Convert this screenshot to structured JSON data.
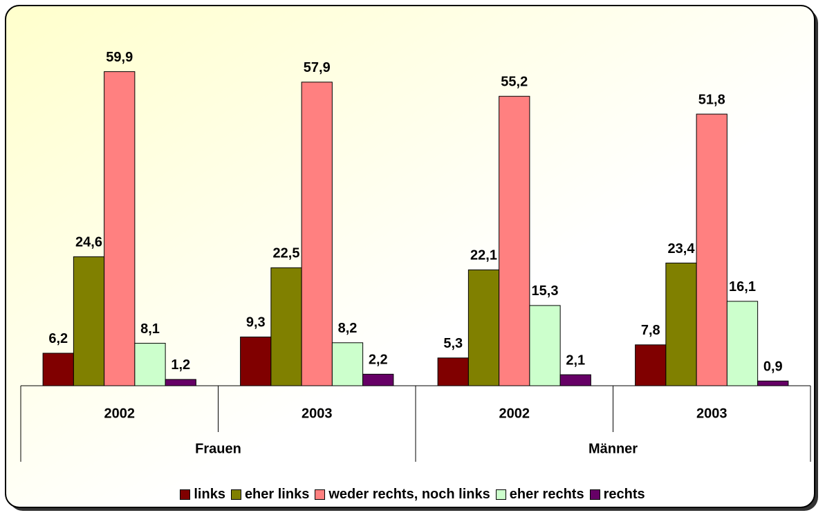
{
  "chart_data": {
    "type": "bar",
    "categories": [
      "2002",
      "2003",
      "2002",
      "2003"
    ],
    "groups": [
      "Frauen",
      "Männer"
    ],
    "ylim": [
      0,
      70
    ],
    "legend": "bottom",
    "series": [
      {
        "name": "links",
        "color": "#800000",
        "values": [
          6.2,
          9.3,
          5.3,
          7.8
        ],
        "value_labels": [
          "6,2",
          "9,3",
          "5,3",
          "7,8"
        ]
      },
      {
        "name": "eher links",
        "color": "#808000",
        "values": [
          24.6,
          22.5,
          22.1,
          23.4
        ],
        "value_labels": [
          "24,6",
          "22,5",
          "22,1",
          "23,4"
        ]
      },
      {
        "name": "weder rechts, noch links",
        "color": "#ff8080",
        "values": [
          59.9,
          57.9,
          55.2,
          51.8
        ],
        "value_labels": [
          "59,9",
          "57,9",
          "55,2",
          "51,8"
        ]
      },
      {
        "name": "eher rechts",
        "color": "#ccffcc",
        "values": [
          8.1,
          8.2,
          15.3,
          16.1
        ],
        "value_labels": [
          "8,1",
          "8,2",
          "15,3",
          "16,1"
        ]
      },
      {
        "name": "rechts",
        "color": "#660066",
        "values": [
          1.2,
          2.2,
          2.1,
          0.9
        ],
        "value_labels": [
          "1,2",
          "2,2",
          "2,1",
          "0,9"
        ]
      }
    ]
  }
}
